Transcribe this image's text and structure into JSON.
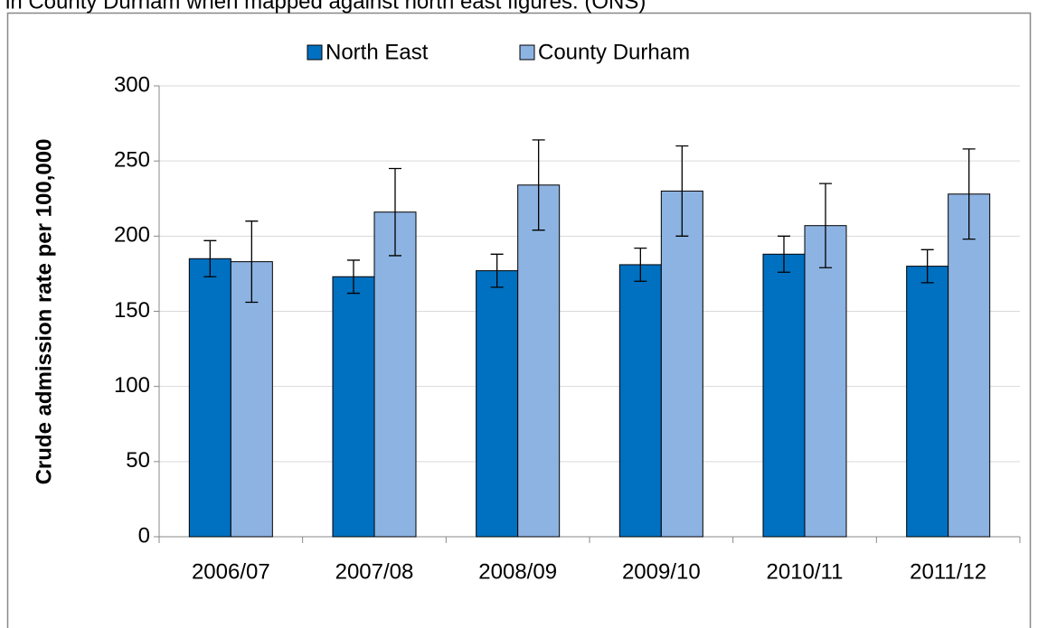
{
  "chart_data": {
    "type": "bar",
    "caption": "in County Durham when mapped against north east figures. (ONS)",
    "y_label": "Crude admission rate per 100,000",
    "categories": [
      "2006/07",
      "2007/08",
      "2008/09",
      "2009/10",
      "2010/11",
      "2011/12"
    ],
    "series": [
      {
        "name": "North East",
        "color": "#0070c0",
        "values": [
          185,
          173,
          177,
          181,
          188,
          180
        ],
        "errors": [
          12,
          11,
          11,
          11,
          12,
          11
        ]
      },
      {
        "name": "County Durham",
        "color": "#8db3e2",
        "values": [
          183,
          216,
          234,
          230,
          207,
          228
        ],
        "errors": [
          27,
          29,
          30,
          30,
          28,
          30
        ]
      }
    ],
    "ylim": [
      0,
      300
    ],
    "yticks": [
      0,
      50,
      100,
      150,
      200,
      250,
      300
    ],
    "grid": true,
    "legend": "top"
  }
}
